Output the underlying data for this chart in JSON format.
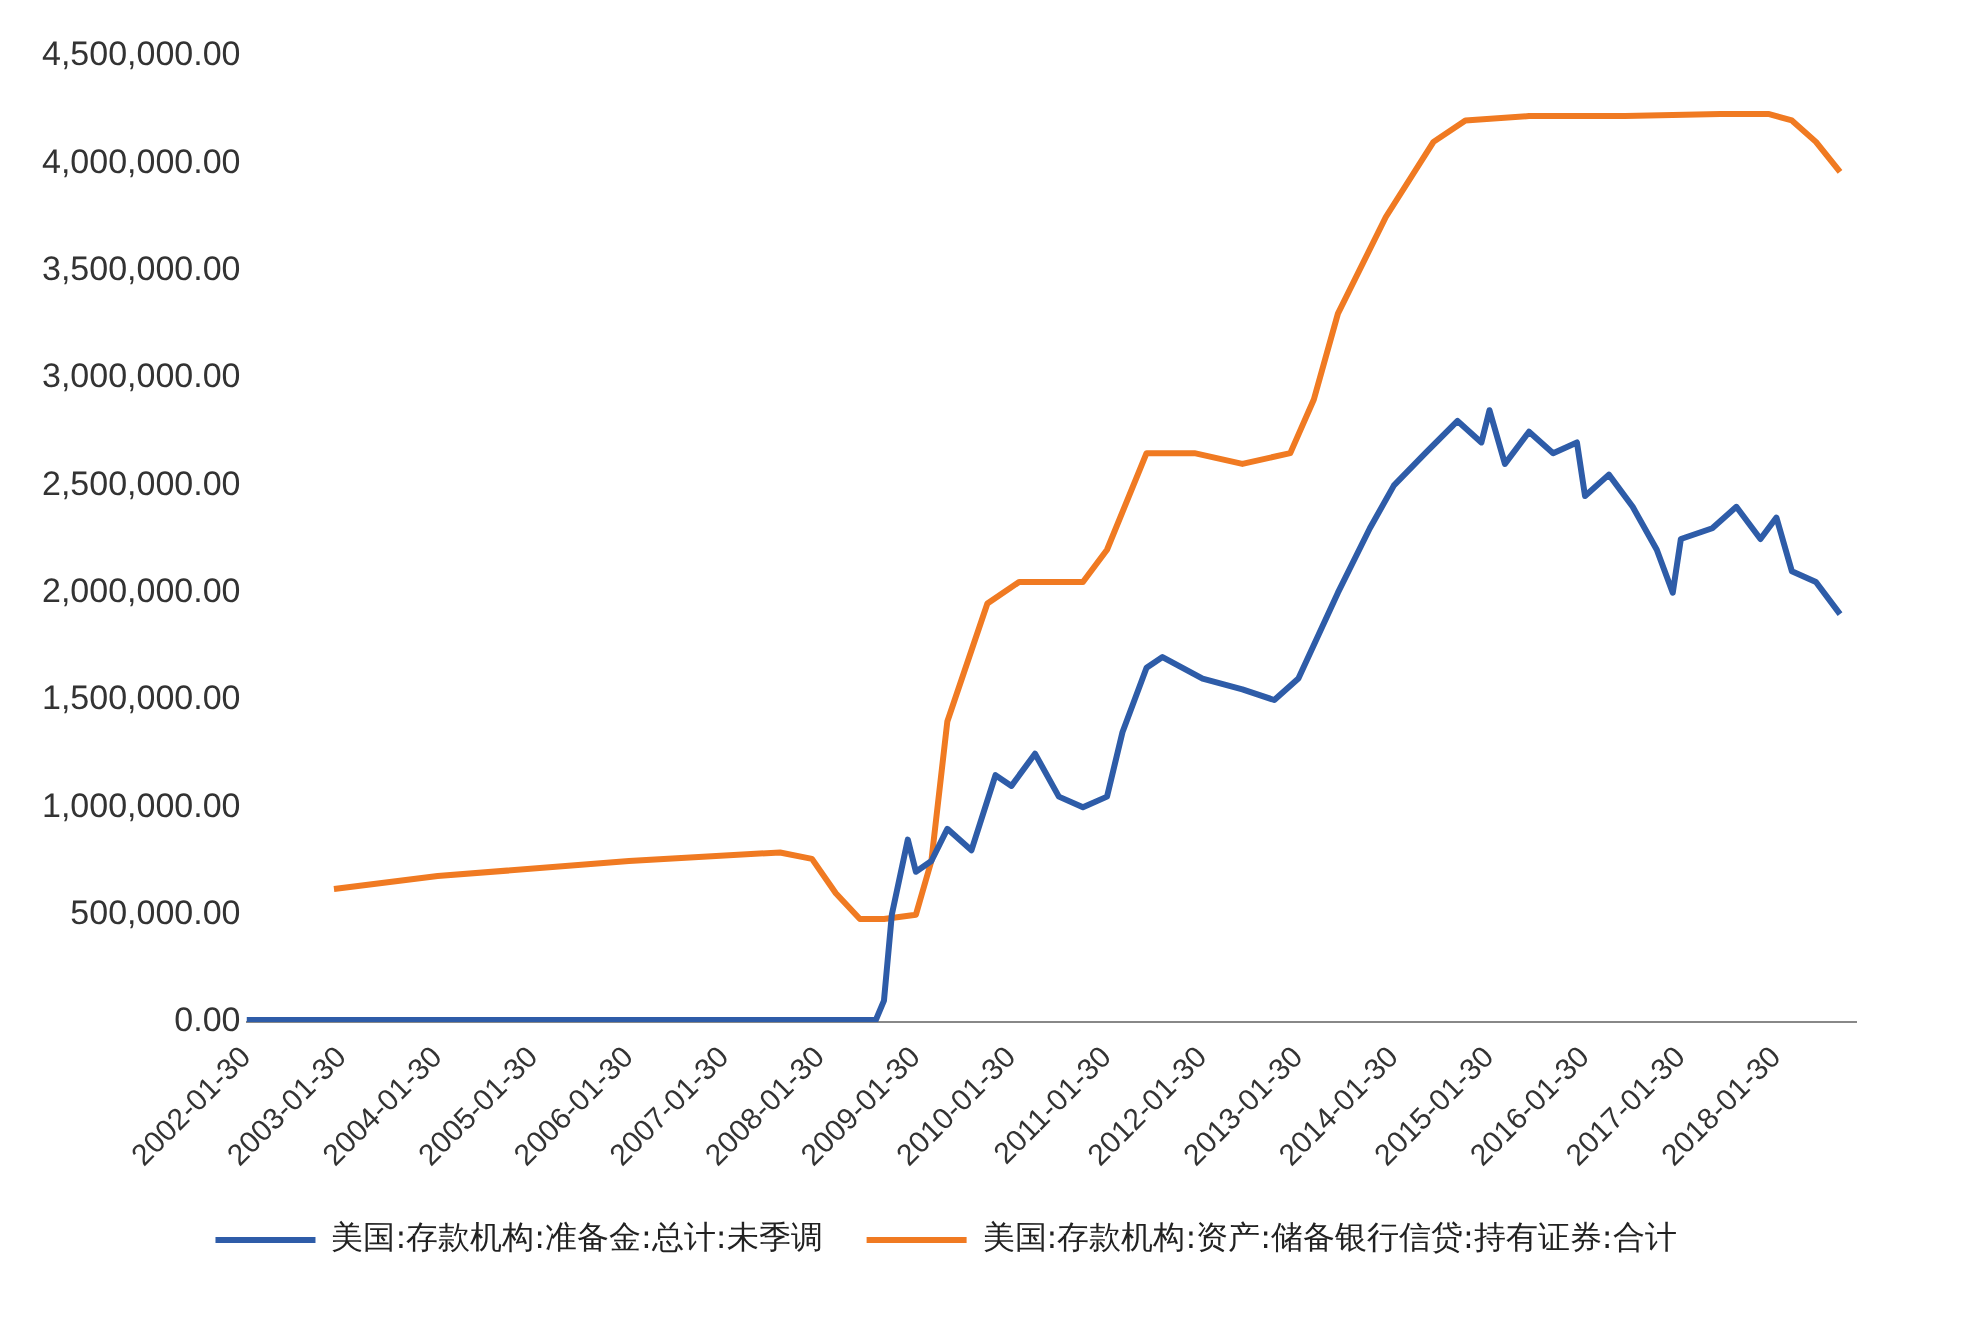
{
  "chart_data": {
    "type": "line",
    "series": [
      {
        "name": "美国:存款机构:准备金:总计:未季调",
        "color": "#2e5ca8",
        "x": [
          "2002-01-30",
          "2003-01-30",
          "2004-01-30",
          "2005-01-30",
          "2006-01-30",
          "2007-01-30",
          "2008-01-30",
          "2008-08-30",
          "2008-09-30",
          "2008-10-30",
          "2008-12-30",
          "2009-01-30",
          "2009-03-30",
          "2009-05-30",
          "2009-08-30",
          "2009-11-30",
          "2010-01-30",
          "2010-04-30",
          "2010-07-30",
          "2010-10-30",
          "2011-01-30",
          "2011-03-30",
          "2011-06-30",
          "2011-08-30",
          "2012-01-30",
          "2012-06-30",
          "2012-10-30",
          "2013-01-30",
          "2013-06-30",
          "2013-10-30",
          "2014-01-30",
          "2014-05-30",
          "2014-09-30",
          "2014-12-30",
          "2015-01-30",
          "2015-03-30",
          "2015-06-30",
          "2015-09-30",
          "2015-12-30",
          "2016-01-30",
          "2016-04-30",
          "2016-07-30",
          "2016-10-30",
          "2016-12-30",
          "2017-01-30",
          "2017-05-30",
          "2017-08-30",
          "2017-11-30",
          "2018-01-30",
          "2018-03-30",
          "2018-06-30",
          "2018-09-30"
        ],
        "values": [
          10000,
          10000,
          10000,
          10000,
          10000,
          10000,
          10000,
          10000,
          100000,
          500000,
          850000,
          700000,
          750000,
          900000,
          800000,
          1150000,
          1100000,
          1250000,
          1050000,
          1000000,
          1050000,
          1350000,
          1650000,
          1700000,
          1600000,
          1550000,
          1500000,
          1600000,
          2000000,
          2300000,
          2500000,
          2650000,
          2800000,
          2700000,
          2850000,
          2600000,
          2750000,
          2650000,
          2700000,
          2450000,
          2550000,
          2400000,
          2200000,
          2000000,
          2250000,
          2300000,
          2400000,
          2250000,
          2350000,
          2100000,
          2050000,
          1900000
        ]
      },
      {
        "name": "美国:存款机构:资产:储备银行信贷:持有证券:合计",
        "color": "#f07a22",
        "x": [
          "2002-12-30",
          "2004-01-30",
          "2006-01-30",
          "2007-08-30",
          "2007-12-30",
          "2008-03-30",
          "2008-06-30",
          "2008-09-30",
          "2009-01-30",
          "2009-03-30",
          "2009-05-30",
          "2009-10-30",
          "2010-02-28",
          "2010-10-30",
          "2011-01-30",
          "2011-06-30",
          "2011-12-30",
          "2012-06-30",
          "2012-12-30",
          "2013-03-30",
          "2013-06-30",
          "2013-12-30",
          "2014-06-30",
          "2014-10-30",
          "2015-06-30",
          "2016-06-30",
          "2017-06-30",
          "2017-12-30",
          "2018-03-30",
          "2018-06-30",
          "2018-09-30"
        ],
        "values": [
          620000,
          680000,
          750000,
          790000,
          760000,
          600000,
          480000,
          480000,
          500000,
          750000,
          1400000,
          1950000,
          2050000,
          2050000,
          2200000,
          2650000,
          2650000,
          2600000,
          2650000,
          2900000,
          3300000,
          3750000,
          4100000,
          4200000,
          4220000,
          4220000,
          4230000,
          4230000,
          4200000,
          4100000,
          3960000
        ]
      }
    ],
    "xlim": [
      "2002-01-30",
      "2018-11-30"
    ],
    "xticks": [
      "2002-01-30",
      "2003-01-30",
      "2004-01-30",
      "2005-01-30",
      "2006-01-30",
      "2007-01-30",
      "2008-01-30",
      "2009-01-30",
      "2010-01-30",
      "2011-01-30",
      "2012-01-30",
      "2013-01-30",
      "2014-01-30",
      "2015-01-30",
      "2016-01-30",
      "2017-01-30",
      "2018-01-30"
    ],
    "ylim": [
      0,
      4500000
    ],
    "yticks": [
      {
        "value": 0,
        "label": "0.00"
      },
      {
        "value": 500000,
        "label": "500,000.00"
      },
      {
        "value": 1000000,
        "label": "1,000,000.00"
      },
      {
        "value": 1500000,
        "label": "1,500,000.00"
      },
      {
        "value": 2000000,
        "label": "2,000,000.00"
      },
      {
        "value": 2500000,
        "label": "2,500,000.00"
      },
      {
        "value": 3000000,
        "label": "3,000,000.00"
      },
      {
        "value": 3500000,
        "label": "3,500,000.00"
      },
      {
        "value": 4000000,
        "label": "4,000,000.00"
      },
      {
        "value": 4500000,
        "label": "4,500,000.00"
      }
    ],
    "grid": false,
    "legend": "bottom",
    "marker": "none",
    "line_style": "solid"
  }
}
